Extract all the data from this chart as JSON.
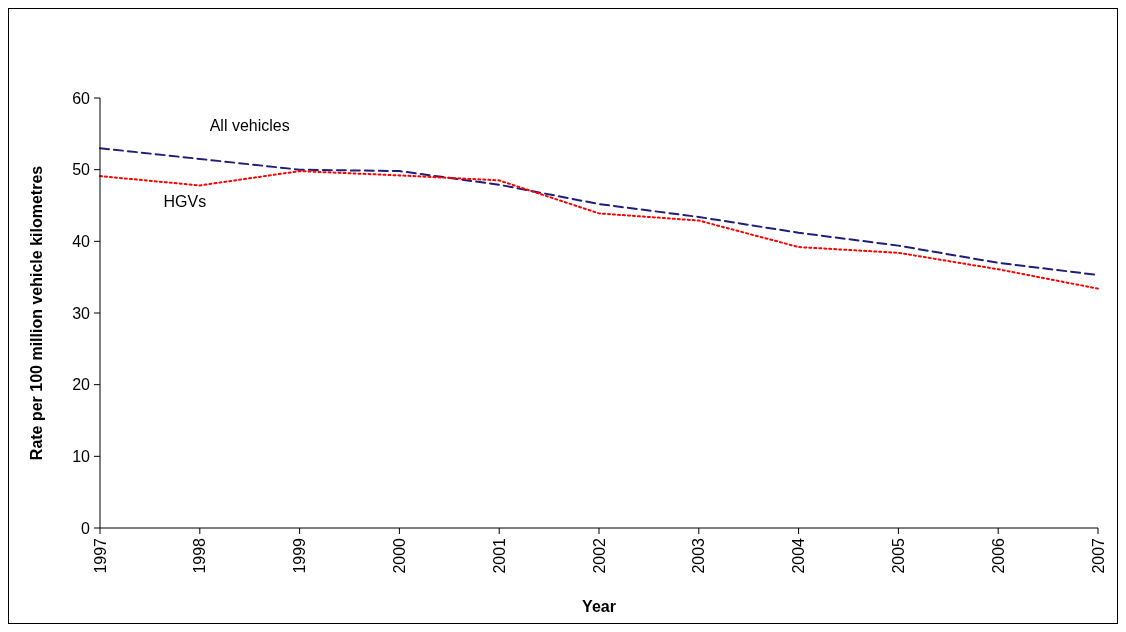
{
  "chart_data": {
    "type": "line",
    "xlabel": "Year",
    "ylabel": "Rate per 100 million vehicle kilometres",
    "x": [
      1997,
      1998,
      1999,
      2000,
      2001,
      2002,
      2003,
      2004,
      2005,
      2006,
      2007
    ],
    "xlim": [
      1997,
      2007
    ],
    "xticks": [
      1997,
      1998,
      1999,
      2000,
      2001,
      2002,
      2003,
      2004,
      2005,
      2006,
      2007
    ],
    "ylim": [
      0,
      60
    ],
    "yticks": [
      0,
      10,
      20,
      30,
      40,
      50,
      60
    ],
    "grid": false,
    "legend": false,
    "marker": "none",
    "series": [
      {
        "name": "All vehicles",
        "color": "#1f1f7a",
        "line_style": "dashed",
        "values": [
          53.0,
          51.5,
          50.0,
          49.8,
          47.9,
          45.2,
          43.4,
          41.2,
          39.4,
          37.0,
          35.3
        ]
      },
      {
        "name": "HGVs",
        "color": "#ff0000",
        "line_style": "dotted",
        "values": [
          49.1,
          47.8,
          49.8,
          49.2,
          48.5,
          43.9,
          42.9,
          39.2,
          38.4,
          36.1,
          33.4
        ]
      }
    ]
  }
}
